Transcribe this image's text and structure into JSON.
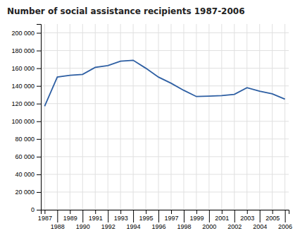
{
  "chart_data": {
    "type": "line",
    "title": "Number of social assistance recipients 1987-2006",
    "x": [
      1987,
      1988,
      1989,
      1990,
      1991,
      1992,
      1993,
      1994,
      1995,
      1996,
      1997,
      1998,
      1999,
      2000,
      2001,
      2002,
      2003,
      2004,
      2005,
      2006
    ],
    "values": [
      117000,
      150000,
      152000,
      153000,
      161000,
      163000,
      168000,
      169000,
      160000,
      150000,
      143000,
      135000,
      128000,
      128500,
      129000,
      130500,
      138000,
      134000,
      131000,
      125000
    ],
    "color": "#2e5fa3",
    "xlim": [
      1986.7,
      2006.3
    ],
    "xticks": [
      1987,
      1988,
      1989,
      1990,
      1991,
      1992,
      1993,
      1994,
      1995,
      1996,
      1997,
      1998,
      1999,
      2000,
      2001,
      2002,
      2003,
      2004,
      2005,
      2006
    ],
    "ylim": [
      0,
      210000
    ],
    "yticks": [
      0,
      {
        "value": 20000,
        "label": "20 000"
      },
      {
        "value": 40000,
        "label": "40 000"
      },
      {
        "value": 60000,
        "label": "60 000"
      },
      {
        "value": 80000,
        "label": "80 000"
      },
      {
        "value": 100000,
        "label": "100 000"
      },
      {
        "value": 120000,
        "label": "120 000"
      },
      {
        "value": 140000,
        "label": "140 000"
      },
      {
        "value": 160000,
        "label": "160 000"
      },
      {
        "value": 180000,
        "label": "180 000"
      },
      {
        "value": 200000,
        "label": "200 000"
      }
    ],
    "grid": true
  }
}
